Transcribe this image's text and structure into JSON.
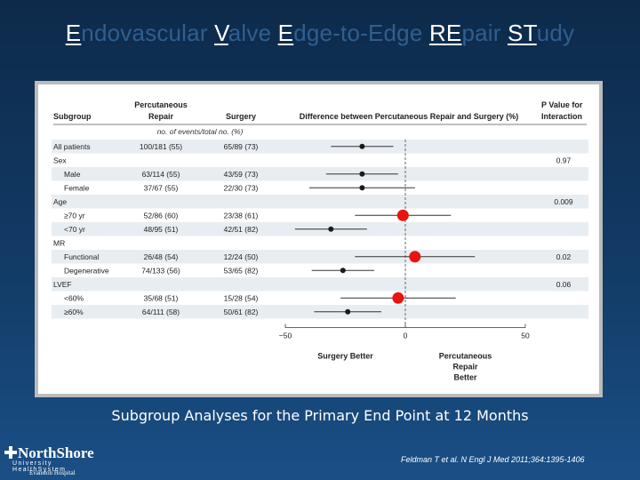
{
  "slide": {
    "title_parts": [
      {
        "text": "E",
        "highlight": true
      },
      {
        "text": "ndovascular ",
        "highlight": false
      },
      {
        "text": "V",
        "highlight": true
      },
      {
        "text": "alve ",
        "highlight": false
      },
      {
        "text": "E",
        "highlight": true
      },
      {
        "text": "dge-to-Edge ",
        "highlight": false
      },
      {
        "text": "RE",
        "highlight": true
      },
      {
        "text": "pair ",
        "highlight": false
      },
      {
        "text": "ST",
        "highlight": true
      },
      {
        "text": "udy",
        "highlight": false
      }
    ],
    "caption": "Subgroup Analyses for the Primary End Point at 12 Months",
    "citation": "Feldman T et al. N Engl J Med 2011;364:1395-1406",
    "logo": {
      "line1": "NorthShore",
      "line2": "University HealthSystem",
      "line3": "Evanston Hospital"
    }
  },
  "chart_data": {
    "type": "forest",
    "title": "",
    "headers": {
      "subgroup": "Subgroup",
      "percutaneous": [
        "Percutaneous",
        "Repair"
      ],
      "surgery": "Surgery",
      "difference": "Difference between Percutaneous Repair and Surgery (%)",
      "pvalue": [
        "P Value for",
        "Interaction"
      ],
      "units": "no. of events/total no. (%)"
    },
    "xlim": [
      -50,
      50
    ],
    "ticks": [
      -50,
      0,
      50
    ],
    "tick_labels": [
      "−50",
      "0",
      "50"
    ],
    "xlabel_left": [
      "Surgery Better"
    ],
    "xlabel_right": [
      "Percutaneous",
      "Repair",
      "Better"
    ],
    "rows": [
      {
        "label": "All patients",
        "indent": 0,
        "percutaneous": "100/181 (55)",
        "surgery": "65/89 (73)",
        "estimate": -18,
        "ci": [
          -31,
          -5
        ],
        "pvalue": "",
        "highlight": false
      },
      {
        "label": "Sex",
        "indent": 0,
        "percutaneous": "",
        "surgery": "",
        "estimate": null,
        "ci": null,
        "pvalue": "0.97",
        "highlight": false
      },
      {
        "label": "Male",
        "indent": 1,
        "percutaneous": "63/114 (55)",
        "surgery": "43/59 (73)",
        "estimate": -18,
        "ci": [
          -33,
          -3
        ],
        "pvalue": "",
        "highlight": false
      },
      {
        "label": "Female",
        "indent": 1,
        "percutaneous": "37/67 (55)",
        "surgery": "22/30 (73)",
        "estimate": -18,
        "ci": [
          -40,
          4
        ],
        "pvalue": "",
        "highlight": false
      },
      {
        "label": "Age",
        "indent": 0,
        "percutaneous": "",
        "surgery": "",
        "estimate": null,
        "ci": null,
        "pvalue": "0.009",
        "highlight": false
      },
      {
        "label": "≥70 yr",
        "indent": 1,
        "percutaneous": "52/86 (60)",
        "surgery": "23/38 (61)",
        "estimate": -1,
        "ci": [
          -21,
          19
        ],
        "pvalue": "",
        "highlight": true
      },
      {
        "label": "<70 yr",
        "indent": 1,
        "percutaneous": "48/95 (51)",
        "surgery": "42/51 (82)",
        "estimate": -31,
        "ci": [
          -46,
          -16
        ],
        "pvalue": "",
        "highlight": false
      },
      {
        "label": "MR",
        "indent": 0,
        "percutaneous": "",
        "surgery": "",
        "estimate": null,
        "ci": null,
        "pvalue": "",
        "highlight": false
      },
      {
        "label": "Functional",
        "indent": 1,
        "percutaneous": "26/48 (54)",
        "surgery": "12/24 (50)",
        "estimate": 4,
        "ci": [
          -21,
          29
        ],
        "pvalue": "0.02",
        "highlight": true
      },
      {
        "label": "Degenerative",
        "indent": 1,
        "percutaneous": "74/133 (56)",
        "surgery": "53/65 (82)",
        "estimate": -26,
        "ci": [
          -39,
          -13
        ],
        "pvalue": "",
        "highlight": false
      },
      {
        "label": "LVEF",
        "indent": 0,
        "percutaneous": "",
        "surgery": "",
        "estimate": null,
        "ci": null,
        "pvalue": "0.06",
        "highlight": false
      },
      {
        "label": "<60%",
        "indent": 1,
        "percutaneous": "35/68 (51)",
        "surgery": "15/28 (54)",
        "estimate": -3,
        "ci": [
          -27,
          21
        ],
        "pvalue": "",
        "highlight": true
      },
      {
        "label": "≥60%",
        "indent": 1,
        "percutaneous": "64/111 (58)",
        "surgery": "50/61 (82)",
        "estimate": -24,
        "ci": [
          -38,
          -10
        ],
        "pvalue": "",
        "highlight": false
      }
    ],
    "colors": {
      "stripe": "#e8edf2",
      "highlight": "#e8140f",
      "point": "#1a1a1a",
      "header_rule": "#555555",
      "ref_line": "#444444"
    }
  }
}
